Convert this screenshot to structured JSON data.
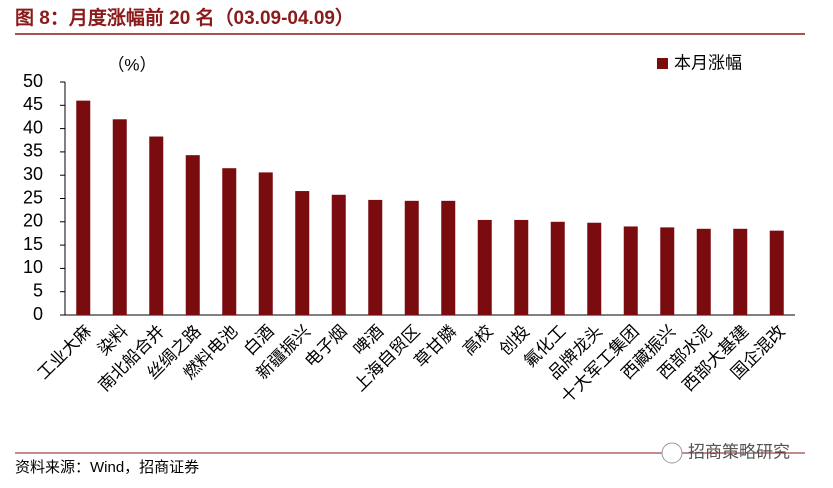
{
  "chart_data": {
    "type": "bar",
    "title": "图 8：月度涨幅前 20 名（03.09-04.09）",
    "y_label": "（%）",
    "series": [
      {
        "name": "本月涨幅",
        "color": "#7a0c10",
        "values": [
          46,
          42,
          38.3,
          34.3,
          31.5,
          30.6,
          26.6,
          25.8,
          24.7,
          24.5,
          24.5,
          20.4,
          20.4,
          20.0,
          19.8,
          19.0,
          18.8,
          18.5,
          18.5,
          18.1
        ]
      }
    ],
    "categories": [
      "工业大麻",
      "染料",
      "南北船合并",
      "丝绸之路",
      "燃料电池",
      "白酒",
      "新疆振兴",
      "电子烟",
      "啤酒",
      "上海自贸区",
      "草甘膦",
      "高校",
      "创投",
      "氟化工",
      "品牌龙头",
      "十大军工集团",
      "西藏振兴",
      "西部水泥",
      "西部大基建",
      "国企混改"
    ],
    "ylim": [
      0,
      50
    ],
    "yticks": [
      0,
      5,
      10,
      15,
      20,
      25,
      30,
      35,
      40,
      45,
      50
    ],
    "legend": "top-right",
    "source": "资料来源：Wind，招商证券",
    "watermark": "招商策略研究"
  }
}
